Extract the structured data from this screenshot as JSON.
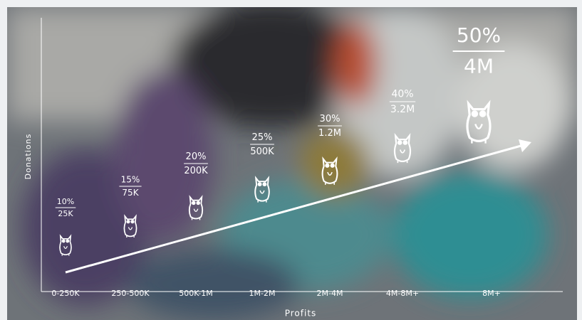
{
  "x_axis_label": "Profits",
  "y_axis_label": "Donations",
  "tiers": [
    {
      "profits": "0-250K",
      "percent": "10%",
      "donation": "25K"
    },
    {
      "profits": "250-500K",
      "percent": "15%",
      "donation": "75K"
    },
    {
      "profits": "500K-1M",
      "percent": "20%",
      "donation": "200K"
    },
    {
      "profits": "1M-2M",
      "percent": "25%",
      "donation": "500K"
    },
    {
      "profits": "2M-4M",
      "percent": "30%",
      "donation": "1.2M"
    },
    {
      "profits": "4M-8M+",
      "percent": "40%",
      "donation": "3.2M"
    },
    {
      "profits": "8M+",
      "percent": "50%",
      "donation": "4M"
    }
  ]
}
